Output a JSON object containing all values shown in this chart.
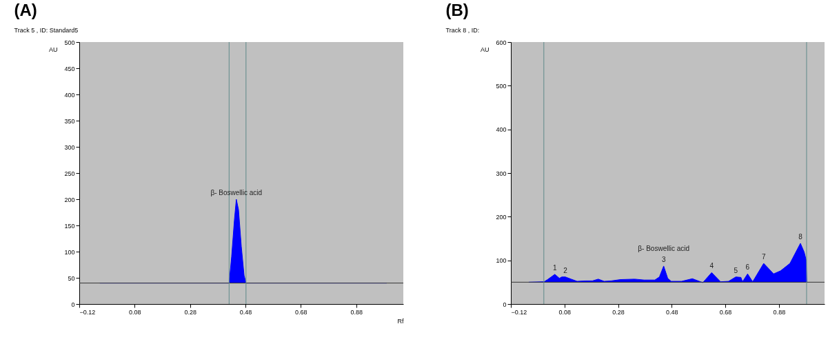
{
  "chart_data": [
    {
      "type": "area",
      "title": "(A)",
      "subtitle": "Track  5 , ID: Standard5",
      "xlabel": "Rf",
      "ylabel": "AU",
      "xlim": [
        -0.12,
        1.05
      ],
      "xticks": [
        -0.12,
        0.08,
        0.28,
        0.48,
        0.68,
        0.88
      ],
      "ylim": [
        0,
        500
      ],
      "yticks": [
        0,
        50,
        100,
        150,
        200,
        250,
        300,
        350,
        400,
        450,
        500
      ],
      "x": [
        -0.046,
        0.421,
        0.43,
        0.44,
        0.447,
        0.455,
        0.465,
        0.475,
        0.482,
        0.99
      ],
      "series": [
        {
          "color": "#0000ff",
          "values": [
            40,
            40,
            90,
            160,
            200,
            180,
            110,
            55,
            40,
            40
          ]
        }
      ],
      "ref_lines": [
        {
          "axis": "y",
          "value": 40,
          "color": "#333333"
        },
        {
          "axis": "x",
          "value": 0.421,
          "color": "#5f8a8a"
        },
        {
          "axis": "x",
          "value": 0.482,
          "color": "#5f8a8a"
        }
      ],
      "annotations": [
        {
          "text": "β- Boswellic acid",
          "x": 0.447,
          "y": 200
        }
      ]
    },
    {
      "type": "area",
      "title": "(B)",
      "subtitle": "Track  8 , ID:",
      "ylabel": "AU",
      "xlim": [
        -0.12,
        1.05
      ],
      "xticks": [
        -0.12,
        0.08,
        0.28,
        0.48,
        0.68,
        0.88
      ],
      "ylim": [
        0,
        600
      ],
      "yticks": [
        0,
        100,
        200,
        300,
        400,
        500,
        600
      ],
      "x": [
        -0.053,
        0.004,
        0.017,
        0.044,
        0.061,
        0.07,
        0.083,
        0.105,
        0.127,
        0.158,
        0.184,
        0.206,
        0.228,
        0.254,
        0.289,
        0.342,
        0.377,
        0.417,
        0.434,
        0.45,
        0.465,
        0.478,
        0.517,
        0.557,
        0.596,
        0.629,
        0.662,
        0.692,
        0.719,
        0.738,
        0.744,
        0.763,
        0.782,
        0.823,
        0.86,
        0.886,
        0.921,
        0.96,
        0.974,
        0.981,
        0.984
      ],
      "series": [
        {
          "color": "#0000ff",
          "values": [
            50,
            51,
            56,
            68,
            59,
            62,
            62,
            57,
            52,
            53,
            53,
            57,
            52,
            53,
            56,
            57,
            55,
            55,
            62,
            87,
            59,
            52,
            52,
            58,
            49,
            72,
            51,
            52,
            62,
            61,
            51,
            69,
            51,
            93,
            69,
            76,
            93,
            139,
            119,
            102,
            50
          ]
        }
      ],
      "ref_lines": [
        {
          "axis": "y",
          "value": 50,
          "color": "#333333"
        },
        {
          "axis": "x",
          "value": 0.003,
          "color": "#5f8a8a"
        },
        {
          "axis": "x",
          "value": 0.983,
          "color": "#5f8a8a"
        }
      ],
      "annotations": [
        {
          "text": "1",
          "x": 0.044,
          "y": 68
        },
        {
          "text": "2",
          "x": 0.083,
          "y": 62
        },
        {
          "text": "3",
          "x": 0.45,
          "y": 87
        },
        {
          "text": "β- Boswellic acid",
          "x": 0.45,
          "y": 87
        },
        {
          "text": "4",
          "x": 0.629,
          "y": 72
        },
        {
          "text": "5",
          "x": 0.719,
          "y": 62
        },
        {
          "text": "6",
          "x": 0.763,
          "y": 69
        },
        {
          "text": "7",
          "x": 0.823,
          "y": 93
        },
        {
          "text": "8",
          "x": 0.96,
          "y": 139
        }
      ]
    }
  ]
}
